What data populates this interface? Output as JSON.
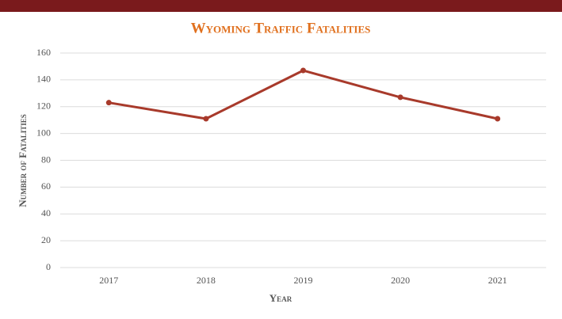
{
  "chart_data": {
    "type": "line",
    "title": "Wyoming Traffic Fatalities",
    "xlabel": "Year",
    "ylabel": "Number of Fatalities",
    "categories": [
      "2017",
      "2018",
      "2019",
      "2020",
      "2021"
    ],
    "series": [
      {
        "name": "Fatalities",
        "color": "#a83a2b",
        "values": [
          123,
          111,
          147,
          127,
          111
        ]
      }
    ],
    "ylim": [
      0,
      160
    ],
    "yticks": [
      0,
      20,
      40,
      60,
      80,
      100,
      120,
      140,
      160
    ],
    "grid": true
  }
}
